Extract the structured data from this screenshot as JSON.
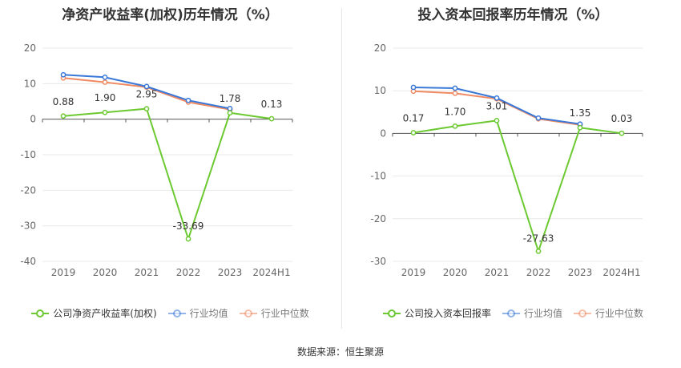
{
  "colors": {
    "company": "#6cc932",
    "industry_avg": "#3a78d8",
    "industry_median": "#f08a63"
  },
  "footer": "数据来源：恒生聚源",
  "chart_data": [
    {
      "type": "line",
      "title": "净资产收益率(加权)历年情况（%）",
      "categories": [
        "2019",
        "2020",
        "2021",
        "2022",
        "2023",
        "2024H1"
      ],
      "ylim": [
        -40,
        20
      ],
      "yticks": [
        20,
        10,
        0,
        -10,
        -20,
        -30,
        -40
      ],
      "series": [
        {
          "name": "公司净资产收益率(加权)",
          "values": [
            0.88,
            1.9,
            2.95,
            -33.69,
            1.78,
            0.13
          ],
          "labels": [
            "0.88",
            "1.90",
            "2.95",
            "-33.69",
            "1.78",
            "0.13"
          ]
        },
        {
          "name": "行业均值",
          "values": [
            12.5,
            11.8,
            9.2,
            5.3,
            3.0,
            null
          ]
        },
        {
          "name": "行业中位数",
          "values": [
            11.6,
            10.4,
            9.0,
            4.8,
            2.7,
            null
          ]
        }
      ],
      "grid": true,
      "legend": "bottom"
    },
    {
      "type": "line",
      "title": "投入资本回报率历年情况（%）",
      "categories": [
        "2019",
        "2020",
        "2021",
        "2022",
        "2023",
        "2024H1"
      ],
      "ylim": [
        -30,
        20
      ],
      "yticks": [
        20,
        10,
        0,
        -10,
        -20,
        -30
      ],
      "series": [
        {
          "name": "公司投入资本回报率",
          "values": [
            0.17,
            1.7,
            3.01,
            -27.63,
            1.35,
            0.03
          ],
          "labels": [
            "0.17",
            "1.70",
            "3.01",
            "-27.63",
            "1.35",
            "0.03"
          ]
        },
        {
          "name": "行业均值",
          "values": [
            10.8,
            10.6,
            8.3,
            3.6,
            2.2,
            null
          ]
        },
        {
          "name": "行业中位数",
          "values": [
            9.9,
            9.4,
            8.1,
            3.4,
            2.0,
            null
          ]
        }
      ],
      "grid": true,
      "legend": "bottom"
    }
  ]
}
